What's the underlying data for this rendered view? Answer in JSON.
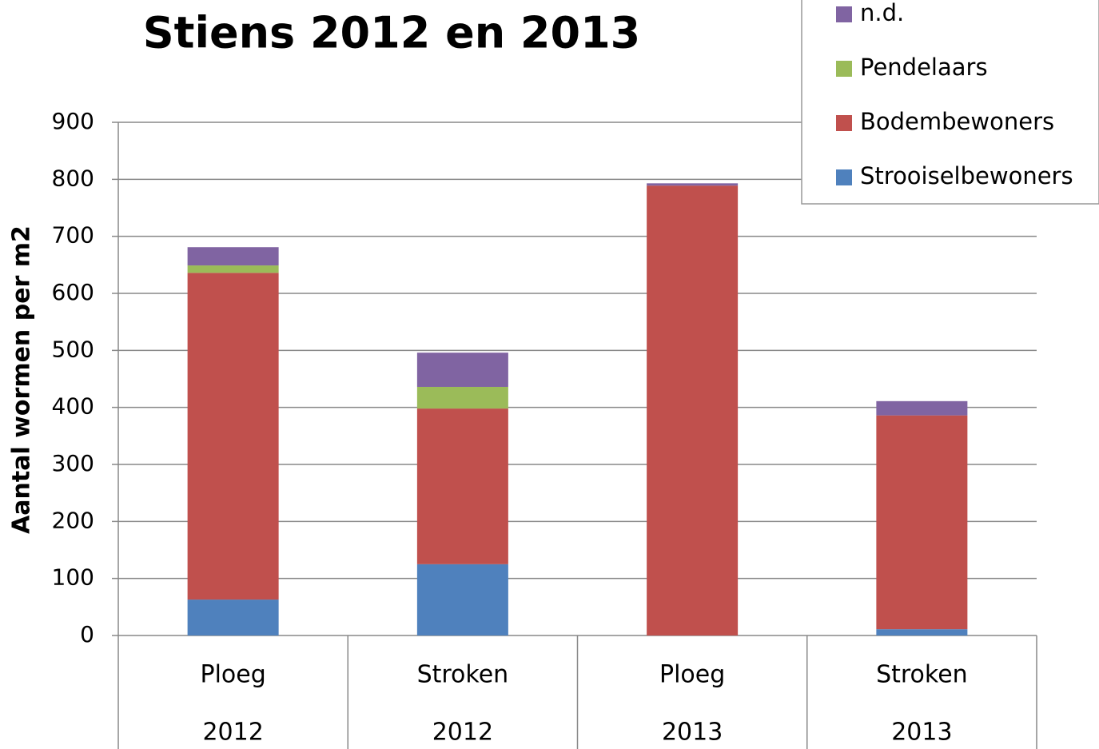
{
  "chart_data": {
    "type": "stacked_bar",
    "title": "Stiens 2012 en 2013",
    "y_label": "Aantal wormen per m2",
    "categories": [
      [
        "Ploeg",
        "2012"
      ],
      [
        "Stroken",
        "2012"
      ],
      [
        "Ploeg",
        "2013"
      ],
      [
        "Stroken",
        "2013"
      ]
    ],
    "series": [
      {
        "name": "Strooiselbewoners",
        "color": "#4f81bd",
        "values": [
          63,
          125,
          0,
          11
        ]
      },
      {
        "name": "Bodembewoners",
        "color": "#c0504d",
        "values": [
          573,
          273,
          789,
          375
        ]
      },
      {
        "name": "Pendelaars",
        "color": "#9bbb59",
        "values": [
          13,
          38,
          0,
          0
        ]
      },
      {
        "name": "n.d.",
        "color": "#8064a2",
        "values": [
          32,
          60,
          4,
          25
        ]
      }
    ],
    "ylim": [
      0,
      900
    ],
    "yticks": [
      0,
      100,
      200,
      300,
      400,
      500,
      600,
      700,
      800,
      900
    ],
    "grid": true,
    "legend": "upper right"
  }
}
